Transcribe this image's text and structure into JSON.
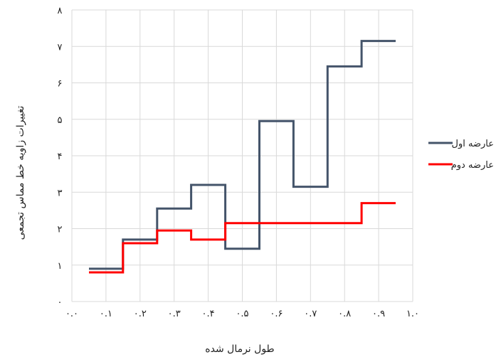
{
  "chart_data": {
    "type": "line",
    "step": true,
    "xlabel": "طول نرمال شده",
    "ylabel": "تغییرات زاویه خط مماس تجمعی",
    "xlim": [
      0,
      1
    ],
    "ylim": [
      0,
      8
    ],
    "x_ticks": [
      0,
      0.1,
      0.2,
      0.3,
      0.4,
      0.5,
      0.6,
      0.7,
      0.8,
      0.9,
      1.0
    ],
    "x_tick_labels": [
      "۰.۰",
      "۰.۱",
      "۰.۲",
      "۰.۳",
      "۰.۴",
      "۰.۵",
      "۰.۶",
      "۰.۷",
      "۰.۸",
      "۰.۹",
      "۱.۰"
    ],
    "y_ticks": [
      0,
      1,
      2,
      3,
      4,
      5,
      6,
      7,
      8
    ],
    "y_tick_labels": [
      "۰",
      "۱",
      "۲",
      "۳",
      "۴",
      "۵",
      "۶",
      "۷",
      "۸"
    ],
    "grid": true,
    "legend_position": "right",
    "series": [
      {
        "name": "عارضه اول",
        "color": "#44546a",
        "x": [
          0.05,
          0.15,
          0.15,
          0.25,
          0.25,
          0.35,
          0.35,
          0.45,
          0.45,
          0.55,
          0.55,
          0.65,
          0.65,
          0.75,
          0.75,
          0.85,
          0.85,
          0.95
        ],
        "y": [
          0.9,
          0.9,
          1.7,
          1.7,
          2.55,
          2.55,
          3.2,
          3.2,
          1.45,
          1.45,
          4.95,
          4.95,
          3.15,
          3.15,
          6.45,
          6.45,
          7.15,
          7.15
        ]
      },
      {
        "name": "عارضه دوم",
        "color": "#ff0000",
        "x": [
          0.05,
          0.15,
          0.15,
          0.25,
          0.25,
          0.35,
          0.35,
          0.45,
          0.45,
          0.85,
          0.85,
          0.95
        ],
        "y": [
          0.8,
          0.8,
          1.6,
          1.6,
          1.95,
          1.95,
          1.7,
          1.7,
          2.15,
          2.15,
          2.7,
          2.7
        ]
      }
    ]
  }
}
